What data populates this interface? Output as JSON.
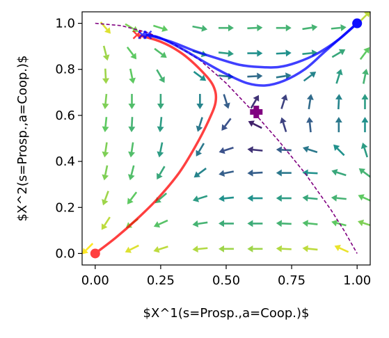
{
  "chart_data": {
    "type": "quiver-trajectory",
    "xlabel": "$X^1(s=Prosp.,a=Coop.)$",
    "ylabel": "$X^2(s=Prosp.,a=Coop.)$",
    "xlim": [
      -0.05,
      1.05
    ],
    "ylim": [
      -0.05,
      1.05
    ],
    "xticks": [
      0.0,
      0.25,
      0.5,
      0.75,
      1.0
    ],
    "xtick_labels": [
      "0.00",
      "0.25",
      "0.50",
      "0.75",
      "1.00"
    ],
    "yticks": [
      0.0,
      0.2,
      0.4,
      0.6,
      0.8,
      1.0
    ],
    "ytick_labels": [
      "0.0",
      "0.2",
      "0.4",
      "0.6",
      "0.8",
      "1.0"
    ],
    "grid": false,
    "colormap": "viridis",
    "quiver": [
      {
        "x": 0.04,
        "y": 0.98,
        "u": 0.65,
        "v": -0.75,
        "m": 0.95
      },
      {
        "x": 0.14,
        "y": 0.98,
        "u": 0.85,
        "v": -0.5,
        "m": 0.8
      },
      {
        "x": 0.25,
        "y": 0.98,
        "u": 0.95,
        "v": -0.3,
        "m": 0.75
      },
      {
        "x": 0.4,
        "y": 0.98,
        "u": 1.0,
        "v": -0.2,
        "m": 0.65
      },
      {
        "x": 0.5,
        "y": 0.98,
        "u": 1.0,
        "v": 0.0,
        "m": 0.65
      },
      {
        "x": 0.61,
        "y": 0.98,
        "u": 1.0,
        "v": 0.05,
        "m": 0.65
      },
      {
        "x": 0.72,
        "y": 0.98,
        "u": 1.0,
        "v": 0.0,
        "m": 0.65
      },
      {
        "x": 0.82,
        "y": 0.98,
        "u": 1.0,
        "v": 0.15,
        "m": 0.65
      },
      {
        "x": 0.93,
        "y": 0.98,
        "u": 1.0,
        "v": 0.1,
        "m": 0.65
      },
      {
        "x": 1.03,
        "y": 1.03,
        "u": 0.7,
        "v": 0.7,
        "m": 0.9
      },
      {
        "x": 0.04,
        "y": 0.87,
        "u": 0.25,
        "v": -0.97,
        "m": 0.85
      },
      {
        "x": 0.14,
        "y": 0.87,
        "u": 0.6,
        "v": -0.8,
        "m": 0.75
      },
      {
        "x": 0.25,
        "y": 0.87,
        "u": 0.8,
        "v": -0.6,
        "m": 0.7
      },
      {
        "x": 0.4,
        "y": 0.87,
        "u": 0.95,
        "v": -0.3,
        "m": 0.6
      },
      {
        "x": 0.5,
        "y": 0.87,
        "u": 1.0,
        "v": -0.1,
        "m": 0.55
      },
      {
        "x": 0.61,
        "y": 0.87,
        "u": 1.0,
        "v": 0.0,
        "m": 0.5
      },
      {
        "x": 0.72,
        "y": 0.87,
        "u": 1.0,
        "v": 0.05,
        "m": 0.5
      },
      {
        "x": 0.82,
        "y": 0.87,
        "u": 1.0,
        "v": 0.1,
        "m": 0.55
      },
      {
        "x": 0.93,
        "y": 0.87,
        "u": 0.85,
        "v": 0.5,
        "m": 0.6
      },
      {
        "x": 1.03,
        "y": 0.87,
        "u": 0.6,
        "v": 0.8,
        "m": 0.75
      },
      {
        "x": 0.04,
        "y": 0.77,
        "u": 0.05,
        "v": -1.0,
        "m": 0.85
      },
      {
        "x": 0.14,
        "y": 0.77,
        "u": 0.2,
        "v": -0.97,
        "m": 0.75
      },
      {
        "x": 0.25,
        "y": 0.77,
        "u": 0.5,
        "v": -0.85,
        "m": 0.65
      },
      {
        "x": 0.4,
        "y": 0.77,
        "u": 0.8,
        "v": -0.6,
        "m": 0.5
      },
      {
        "x": 0.5,
        "y": 0.77,
        "u": 1.0,
        "v": -0.1,
        "m": 0.4
      },
      {
        "x": 0.61,
        "y": 0.77,
        "u": 1.0,
        "v": 0.05,
        "m": 0.35
      },
      {
        "x": 0.72,
        "y": 0.77,
        "u": 1.0,
        "v": 0.15,
        "m": 0.4
      },
      {
        "x": 0.82,
        "y": 0.77,
        "u": 0.8,
        "v": 0.6,
        "m": 0.45
      },
      {
        "x": 0.93,
        "y": 0.77,
        "u": 0.3,
        "v": 0.95,
        "m": 0.55
      },
      {
        "x": 1.03,
        "y": 0.77,
        "u": 0.2,
        "v": 0.98,
        "m": 0.65
      },
      {
        "x": 0.04,
        "y": 0.66,
        "u": -0.1,
        "v": -1.0,
        "m": 0.8
      },
      {
        "x": 0.14,
        "y": 0.66,
        "u": 0.0,
        "v": -1.0,
        "m": 0.7
      },
      {
        "x": 0.25,
        "y": 0.66,
        "u": 0.0,
        "v": -1.0,
        "m": 0.6
      },
      {
        "x": 0.4,
        "y": 0.66,
        "u": 0.0,
        "v": -1.0,
        "m": 0.45
      },
      {
        "x": 0.5,
        "y": 0.66,
        "u": 0.3,
        "v": -0.95,
        "m": 0.3
      },
      {
        "x": 0.61,
        "y": 0.66,
        "u": 0.5,
        "v": 0.85,
        "m": 0.15
      },
      {
        "x": 0.72,
        "y": 0.66,
        "u": 0.3,
        "v": 0.95,
        "m": 0.2
      },
      {
        "x": 0.82,
        "y": 0.66,
        "u": 0.15,
        "v": 0.98,
        "m": 0.35
      },
      {
        "x": 0.93,
        "y": 0.66,
        "u": 0.05,
        "v": 1.0,
        "m": 0.45
      },
      {
        "x": 1.03,
        "y": 0.66,
        "u": 0.0,
        "v": 1.0,
        "m": 0.55
      },
      {
        "x": 0.04,
        "y": 0.56,
        "u": -0.1,
        "v": -1.0,
        "m": 0.75
      },
      {
        "x": 0.14,
        "y": 0.56,
        "u": -0.05,
        "v": -1.0,
        "m": 0.65
      },
      {
        "x": 0.25,
        "y": 0.56,
        "u": -0.1,
        "v": -1.0,
        "m": 0.55
      },
      {
        "x": 0.4,
        "y": 0.56,
        "u": -0.3,
        "v": -0.95,
        "m": 0.4
      },
      {
        "x": 0.5,
        "y": 0.56,
        "u": -0.6,
        "v": -0.8,
        "m": 0.25
      },
      {
        "x": 0.61,
        "y": 0.56,
        "u": -0.8,
        "v": 0.4,
        "m": 0.1
      },
      {
        "x": 0.72,
        "y": 0.56,
        "u": -0.3,
        "v": 0.95,
        "m": 0.2
      },
      {
        "x": 0.82,
        "y": 0.56,
        "u": -0.1,
        "v": 1.0,
        "m": 0.3
      },
      {
        "x": 0.93,
        "y": 0.56,
        "u": 0.0,
        "v": 1.0,
        "m": 0.4
      },
      {
        "x": 1.03,
        "y": 0.56,
        "u": 0.0,
        "v": 1.0,
        "m": 0.5
      },
      {
        "x": 0.04,
        "y": 0.45,
        "u": -0.15,
        "v": -1.0,
        "m": 0.8
      },
      {
        "x": 0.14,
        "y": 0.45,
        "u": -0.15,
        "v": -1.0,
        "m": 0.7
      },
      {
        "x": 0.25,
        "y": 0.45,
        "u": -0.2,
        "v": -0.98,
        "m": 0.55
      },
      {
        "x": 0.4,
        "y": 0.45,
        "u": -0.5,
        "v": -0.85,
        "m": 0.4
      },
      {
        "x": 0.5,
        "y": 0.45,
        "u": -0.95,
        "v": -0.3,
        "m": 0.25
      },
      {
        "x": 0.61,
        "y": 0.45,
        "u": -1.0,
        "v": 0.1,
        "m": 0.15
      },
      {
        "x": 0.72,
        "y": 0.45,
        "u": -1.0,
        "v": 0.05,
        "m": 0.3
      },
      {
        "x": 0.82,
        "y": 0.45,
        "u": -0.95,
        "v": 0.3,
        "m": 0.4
      },
      {
        "x": 0.93,
        "y": 0.45,
        "u": -0.7,
        "v": 0.7,
        "m": 0.5
      },
      {
        "x": 1.03,
        "y": 0.45,
        "u": -0.3,
        "v": 0.95,
        "m": 0.55
      },
      {
        "x": 0.04,
        "y": 0.35,
        "u": -0.2,
        "v": -0.98,
        "m": 0.8
      },
      {
        "x": 0.14,
        "y": 0.35,
        "u": -0.25,
        "v": -0.97,
        "m": 0.7
      },
      {
        "x": 0.25,
        "y": 0.35,
        "u": -0.5,
        "v": -0.85,
        "m": 0.6
      },
      {
        "x": 0.4,
        "y": 0.35,
        "u": -0.8,
        "v": -0.6,
        "m": 0.45
      },
      {
        "x": 0.5,
        "y": 0.35,
        "u": -1.0,
        "v": -0.2,
        "m": 0.3
      },
      {
        "x": 0.61,
        "y": 0.35,
        "u": -1.0,
        "v": -0.05,
        "m": 0.3
      },
      {
        "x": 0.72,
        "y": 0.35,
        "u": -1.0,
        "v": 0.0,
        "m": 0.4
      },
      {
        "x": 0.82,
        "y": 0.35,
        "u": -1.0,
        "v": 0.05,
        "m": 0.5
      },
      {
        "x": 0.93,
        "y": 0.35,
        "u": -0.95,
        "v": 0.3,
        "m": 0.6
      },
      {
        "x": 1.03,
        "y": 0.35,
        "u": -0.8,
        "v": 0.6,
        "m": 0.65
      },
      {
        "x": 0.04,
        "y": 0.24,
        "u": -0.35,
        "v": -0.95,
        "m": 0.85
      },
      {
        "x": 0.14,
        "y": 0.24,
        "u": -0.6,
        "v": -0.8,
        "m": 0.75
      },
      {
        "x": 0.25,
        "y": 0.24,
        "u": -0.75,
        "v": -0.65,
        "m": 0.65
      },
      {
        "x": 0.4,
        "y": 0.24,
        "u": -0.95,
        "v": -0.3,
        "m": 0.55
      },
      {
        "x": 0.5,
        "y": 0.24,
        "u": -1.0,
        "v": -0.1,
        "m": 0.5
      },
      {
        "x": 0.61,
        "y": 0.24,
        "u": -1.0,
        "v": 0.0,
        "m": 0.5
      },
      {
        "x": 0.72,
        "y": 0.24,
        "u": -1.0,
        "v": 0.0,
        "m": 0.55
      },
      {
        "x": 0.82,
        "y": 0.24,
        "u": -1.0,
        "v": 0.1,
        "m": 0.6
      },
      {
        "x": 0.93,
        "y": 0.24,
        "u": -1.0,
        "v": 0.1,
        "m": 0.65
      },
      {
        "x": 1.03,
        "y": 0.24,
        "u": -0.9,
        "v": 0.4,
        "m": 0.75
      },
      {
        "x": 0.04,
        "y": 0.13,
        "u": -0.55,
        "v": -0.85,
        "m": 0.9
      },
      {
        "x": 0.14,
        "y": 0.13,
        "u": -0.8,
        "v": -0.6,
        "m": 0.8
      },
      {
        "x": 0.25,
        "y": 0.13,
        "u": -0.9,
        "v": -0.4,
        "m": 0.72
      },
      {
        "x": 0.4,
        "y": 0.13,
        "u": -1.0,
        "v": -0.15,
        "m": 0.65
      },
      {
        "x": 0.5,
        "y": 0.13,
        "u": -1.0,
        "v": 0.0,
        "m": 0.62
      },
      {
        "x": 0.61,
        "y": 0.13,
        "u": -1.0,
        "v": 0.0,
        "m": 0.62
      },
      {
        "x": 0.72,
        "y": 0.13,
        "u": -1.0,
        "v": 0.05,
        "m": 0.65
      },
      {
        "x": 0.82,
        "y": 0.13,
        "u": -1.0,
        "v": 0.1,
        "m": 0.7
      },
      {
        "x": 0.93,
        "y": 0.13,
        "u": -1.0,
        "v": 0.25,
        "m": 0.75
      },
      {
        "x": 1.03,
        "y": 0.13,
        "u": -0.95,
        "v": 0.3,
        "m": 0.8
      },
      {
        "x": -0.03,
        "y": 0.02,
        "u": -0.7,
        "v": -0.7,
        "m": 1.0
      },
      {
        "x": 0.14,
        "y": 0.02,
        "u": -0.9,
        "v": -0.45,
        "m": 0.95
      },
      {
        "x": 0.25,
        "y": 0.02,
        "u": -0.95,
        "v": -0.3,
        "m": 0.9
      },
      {
        "x": 0.4,
        "y": 0.02,
        "u": -1.0,
        "v": -0.1,
        "m": 0.88
      },
      {
        "x": 0.5,
        "y": 0.02,
        "u": -1.0,
        "v": 0.0,
        "m": 0.85
      },
      {
        "x": 0.61,
        "y": 0.02,
        "u": -1.0,
        "v": 0.0,
        "m": 0.85
      },
      {
        "x": 0.72,
        "y": 0.02,
        "u": -1.0,
        "v": 0.05,
        "m": 0.88
      },
      {
        "x": 0.82,
        "y": 0.02,
        "u": -1.0,
        "v": 0.1,
        "m": 0.9
      },
      {
        "x": 0.94,
        "y": 0.02,
        "u": -0.9,
        "v": 0.4,
        "m": 0.97
      }
    ],
    "separatrix": {
      "color": "#800080",
      "style": "dashed",
      "x": [
        0.0,
        0.1,
        0.2,
        0.3,
        0.4,
        0.5,
        0.6,
        0.7,
        0.8,
        0.9,
        0.95,
        1.0
      ],
      "y": [
        1.0,
        0.99,
        0.96,
        0.91,
        0.84,
        0.74,
        0.62,
        0.49,
        0.35,
        0.19,
        0.1,
        0.0
      ]
    },
    "saddle_point": {
      "x": 0.615,
      "y": 0.615,
      "color": "#800080",
      "marker": "plus"
    },
    "trajectories": [
      {
        "color": "#ff0000",
        "x": [
          0.0,
          0.08,
          0.16,
          0.24,
          0.32,
          0.38,
          0.43,
          0.46,
          0.45,
          0.4,
          0.33,
          0.25,
          0.16
        ],
        "y": [
          0.0,
          0.07,
          0.15,
          0.24,
          0.35,
          0.46,
          0.57,
          0.66,
          0.73,
          0.8,
          0.87,
          0.92,
          0.95
        ],
        "start": {
          "x": 0.0,
          "y": 0.0
        },
        "end": {
          "x": 0.16,
          "y": 0.95
        }
      },
      {
        "color": "#0000ff",
        "x": [
          1.0,
          0.93,
          0.85,
          0.77,
          0.7,
          0.63,
          0.55,
          0.46,
          0.38,
          0.29,
          0.2
        ],
        "y": [
          1.0,
          0.93,
          0.87,
          0.83,
          0.81,
          0.81,
          0.82,
          0.85,
          0.88,
          0.92,
          0.95
        ],
        "start": {
          "x": 1.0,
          "y": 1.0
        },
        "end": {
          "x": 0.2,
          "y": 0.95
        }
      },
      {
        "color": "#0000ff",
        "x": [
          1.0,
          0.94,
          0.87,
          0.8,
          0.72,
          0.65,
          0.58,
          0.5,
          0.42,
          0.33,
          0.24,
          0.18
        ],
        "y": [
          1.0,
          0.94,
          0.87,
          0.8,
          0.75,
          0.73,
          0.74,
          0.78,
          0.83,
          0.89,
          0.94,
          0.95
        ],
        "start": {
          "x": 1.0,
          "y": 1.0
        },
        "end": {
          "x": 0.18,
          "y": 0.95
        }
      }
    ]
  }
}
